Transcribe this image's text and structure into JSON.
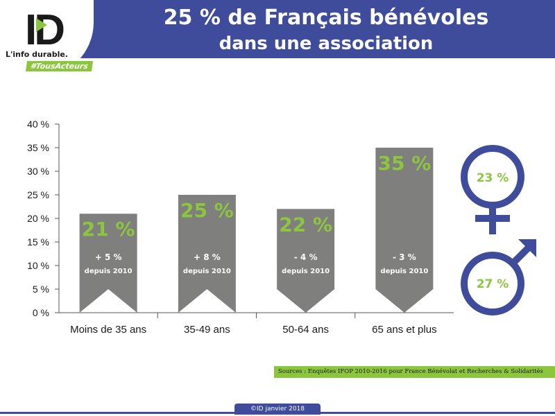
{
  "header": {
    "title_line1": "25 % de Français bénévoles",
    "title_line2": "dans une association",
    "logo_text": "ID",
    "tagline": "L'info durable.",
    "hashtag": "#TousActeurs"
  },
  "colors": {
    "header_blue": "#3e4c9b",
    "accent_green": "#8cc63f",
    "bar_gray": "#7f7f7e",
    "text_dark": "#1a1a1a"
  },
  "chart_data": {
    "type": "bar",
    "categories": [
      "Moins de 35 ans",
      "35-49 ans",
      "50-64 ans",
      "65 ans et plus"
    ],
    "values": [
      21,
      25,
      22,
      35
    ],
    "value_labels": [
      "21 %",
      "25 %",
      "22 %",
      "35 %"
    ],
    "change_labels": [
      "+ 5 %",
      "+ 8 %",
      "- 4 %",
      "- 3 %"
    ],
    "change_direction": [
      "up",
      "up",
      "down",
      "down"
    ],
    "change_note": "depuis 2010",
    "yticks": [
      "0 %",
      "5 %",
      "10 %",
      "15 %",
      "20 %",
      "25 %",
      "30 %",
      "35 %",
      "40 %"
    ],
    "ylim": [
      0,
      40
    ],
    "grid": false
  },
  "gender": {
    "female_value": "23 %",
    "male_value": "27 %",
    "female_icon": "female-symbol-icon",
    "male_icon": "male-symbol-icon"
  },
  "sources": "Sources : Enquêtes IFOP 2010-2016 pour France Bénévolat et Recherches & Solidarités",
  "footer": {
    "copyright": "©ID janvier 2018"
  }
}
